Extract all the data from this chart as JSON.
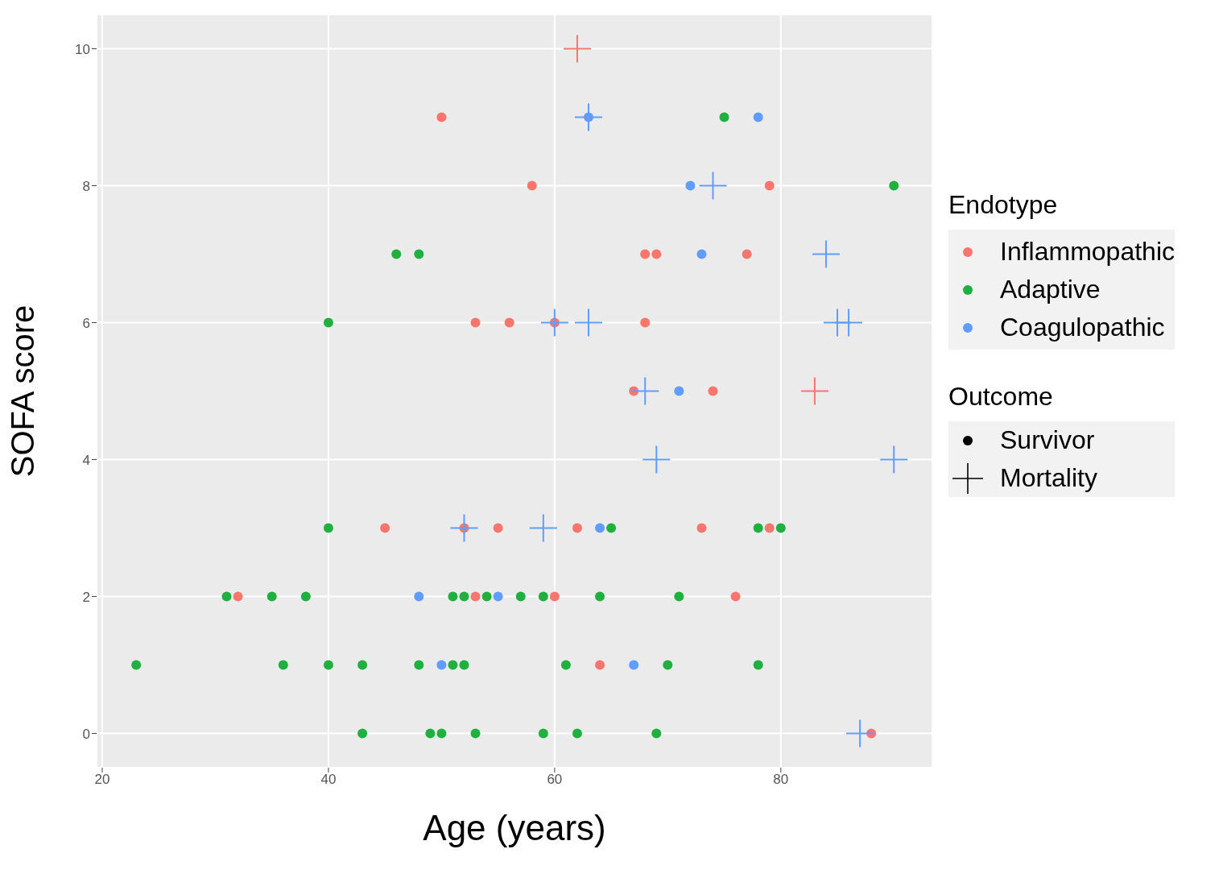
{
  "chart_data": {
    "type": "scatter",
    "xlabel": "Age (years)",
    "ylabel": "SOFA score",
    "legend_title": "Endotype",
    "legend": "right",
    "grid": true,
    "xlim": [
      19.5,
      93.4
    ],
    "ylim": [
      -0.5,
      10.5
    ],
    "xticks": [
      20,
      40,
      60,
      80
    ],
    "yticks": [
      0,
      2,
      4,
      6,
      8,
      10
    ],
    "annotations": [
      "Outcome",
      "Survivor",
      "Mortality"
    ],
    "series": [
      {
        "name": "Inflammopathic",
        "color": "#f8766d",
        "marker": "circle",
        "x": [
          50,
          58,
          79,
          68,
          69,
          77,
          53,
          56,
          60,
          68,
          67,
          74,
          45,
          52,
          55,
          62,
          73,
          79,
          32,
          53,
          60,
          76,
          64,
          88
        ],
        "values": [
          9,
          8,
          8,
          7,
          7,
          7,
          6,
          6,
          6,
          6,
          5,
          5,
          3,
          3,
          3,
          3,
          3,
          3,
          2,
          2,
          2,
          2,
          1,
          0
        ]
      },
      {
        "name": "Adaptive",
        "color": "#1fb040",
        "marker": "circle",
        "x": [
          75,
          90,
          46,
          48,
          40,
          40,
          65,
          78,
          80,
          31,
          35,
          38,
          51,
          52,
          54,
          57,
          59,
          64,
          71,
          23,
          36,
          40,
          43,
          48,
          51,
          52,
          61,
          70,
          78,
          43,
          49,
          50,
          53,
          59,
          62,
          69
        ],
        "values": [
          9,
          8,
          7,
          7,
          6,
          3,
          3,
          3,
          3,
          2,
          2,
          2,
          2,
          2,
          2,
          2,
          2,
          2,
          2,
          1,
          1,
          1,
          1,
          1,
          1,
          1,
          1,
          1,
          1,
          0,
          0,
          0,
          0,
          0,
          0,
          0
        ]
      },
      {
        "name": "Coagulopathic",
        "color": "#619cff",
        "marker": "circle",
        "x": [
          63,
          78,
          72,
          73,
          71,
          64,
          48,
          55,
          50,
          67
        ],
        "values": [
          9,
          9,
          8,
          7,
          5,
          3,
          2,
          2,
          1,
          1
        ]
      },
      {
        "color": "#f8766d",
        "marker": "cross",
        "x": [
          62,
          83
        ],
        "values": [
          10,
          5
        ]
      },
      {
        "color": "#619cff",
        "marker": "cross",
        "x": [
          63,
          74,
          84,
          60,
          63,
          85,
          86,
          68,
          69,
          90,
          52,
          59,
          87
        ],
        "values": [
          9,
          8,
          7,
          6,
          6,
          6,
          6,
          5,
          4,
          4,
          3,
          3,
          0
        ]
      }
    ]
  }
}
